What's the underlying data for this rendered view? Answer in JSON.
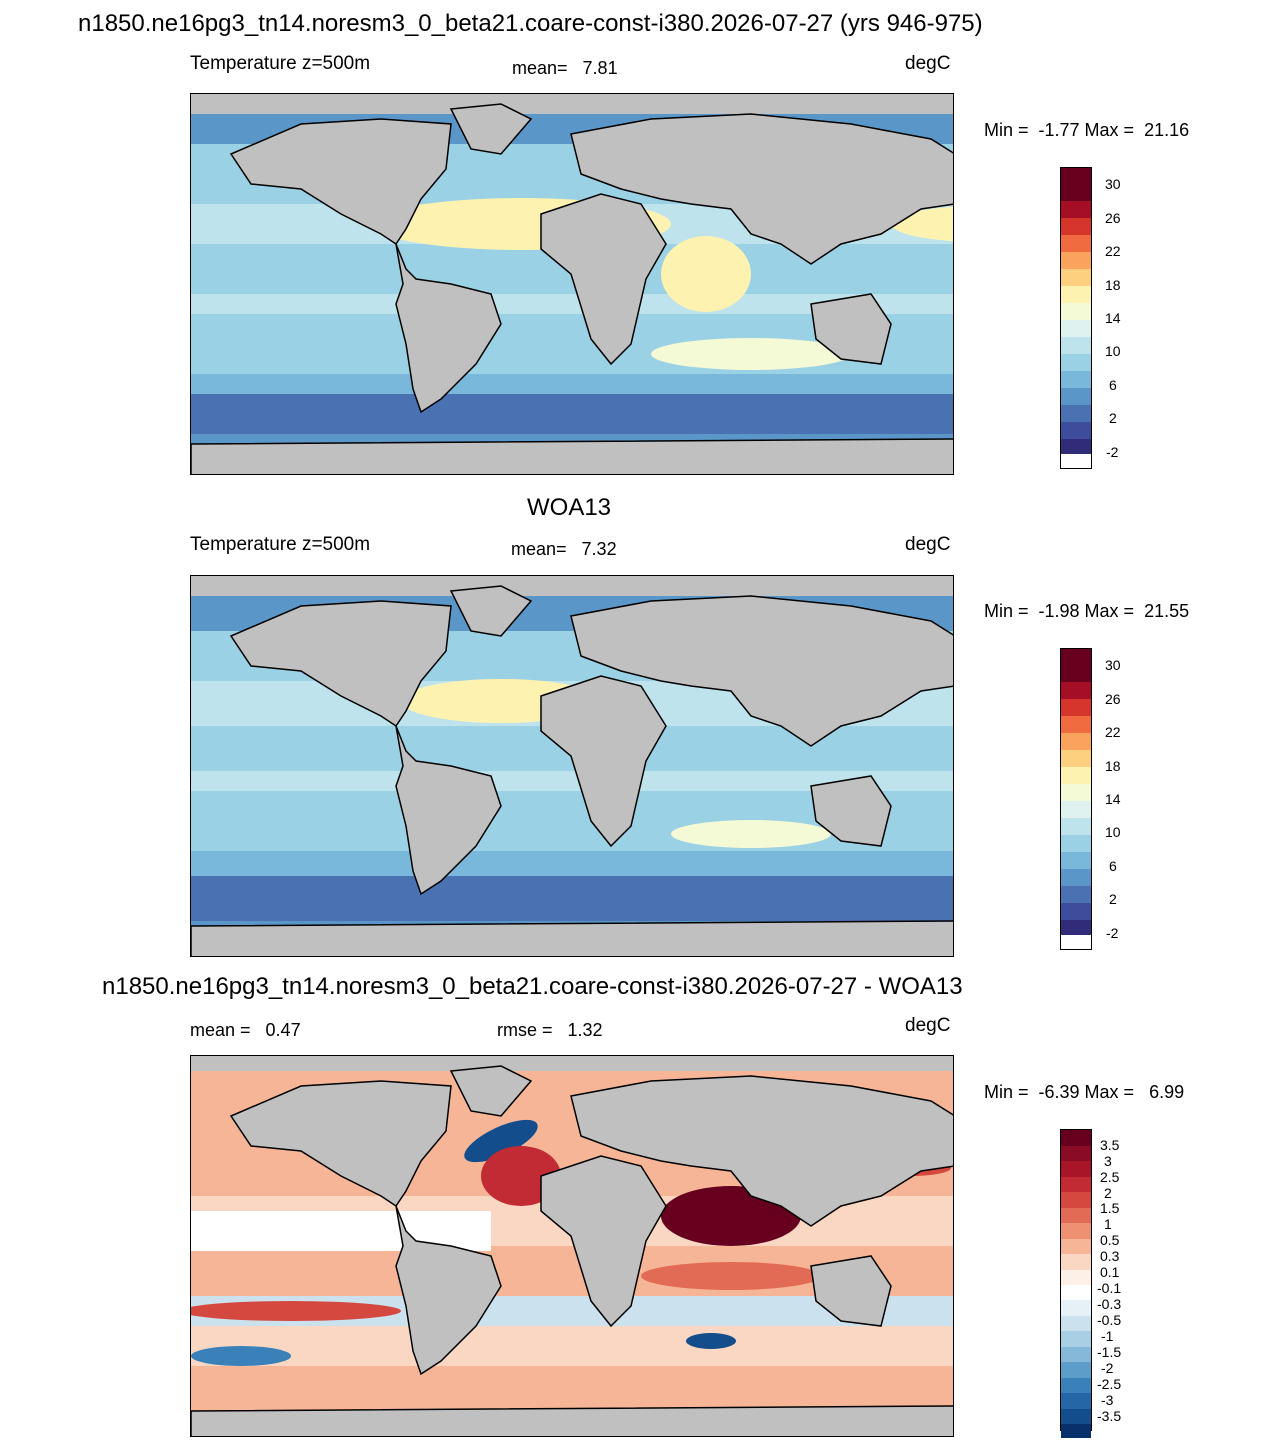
{
  "figure_title": "n1850.ne16pg3_tn14.noresm3_0_beta21.coare-const-i380.2026-07-27 (yrs 946-975)",
  "panels": [
    {
      "variable": "Temperature z=500m",
      "stat": "mean=   7.81",
      "units": "degC",
      "minmax": "Min =  -1.77 Max =  21.16",
      "colorbar": [
        "30",
        "26",
        "22",
        "18",
        "14",
        "10",
        "6",
        "2",
        "-2"
      ],
      "colors": [
        "#67001f",
        "#a50f26",
        "#d6352b",
        "#f06b3f",
        "#f9a35c",
        "#fdd07f",
        "#fef2b0",
        "#f4f9d6",
        "#e0f2f0",
        "#bfe3ec",
        "#9bd1e4",
        "#79b8da",
        "#5b96c9",
        "#4a72b3",
        "#3d4d9c",
        "#312c7a"
      ]
    },
    {
      "heading": "WOA13",
      "variable": "Temperature z=500m",
      "stat": "mean=   7.32",
      "units": "degC",
      "minmax": "Min =  -1.98 Max =  21.55",
      "colorbar": [
        "30",
        "26",
        "22",
        "18",
        "14",
        "10",
        "6",
        "2",
        "-2"
      ]
    },
    {
      "heading": "n1850.ne16pg3_tn14.noresm3_0_beta21.coare-const-i380.2026-07-27 - WOA13",
      "stat_left": "mean =   0.47",
      "stat_mid": "rmse =   1.32",
      "units": "degC",
      "minmax": "Min =  -6.39 Max =   6.99",
      "colorbar": [
        "3.5",
        "3",
        "2.5",
        "2",
        "1.5",
        "1",
        "0.5",
        "0.3",
        "0.1",
        "-0.1",
        "-0.3",
        "-0.5",
        "-1",
        "-1.5",
        "-2",
        "-2.5",
        "-3",
        "-3.5"
      ],
      "colors": [
        "#67001f",
        "#8a0b25",
        "#a81529",
        "#c22b33",
        "#d5483f",
        "#e26b55",
        "#ee9072",
        "#f6b596",
        "#fad7c3",
        "#fdf0e6",
        "#ffffff",
        "#e6f0f7",
        "#cbe1ee",
        "#a9cfe5",
        "#86b9d9",
        "#5d9dca",
        "#3a80b9",
        "#2466a6",
        "#134d8c",
        "#08306b"
      ]
    }
  ],
  "land_color": "#c0c0c0"
}
